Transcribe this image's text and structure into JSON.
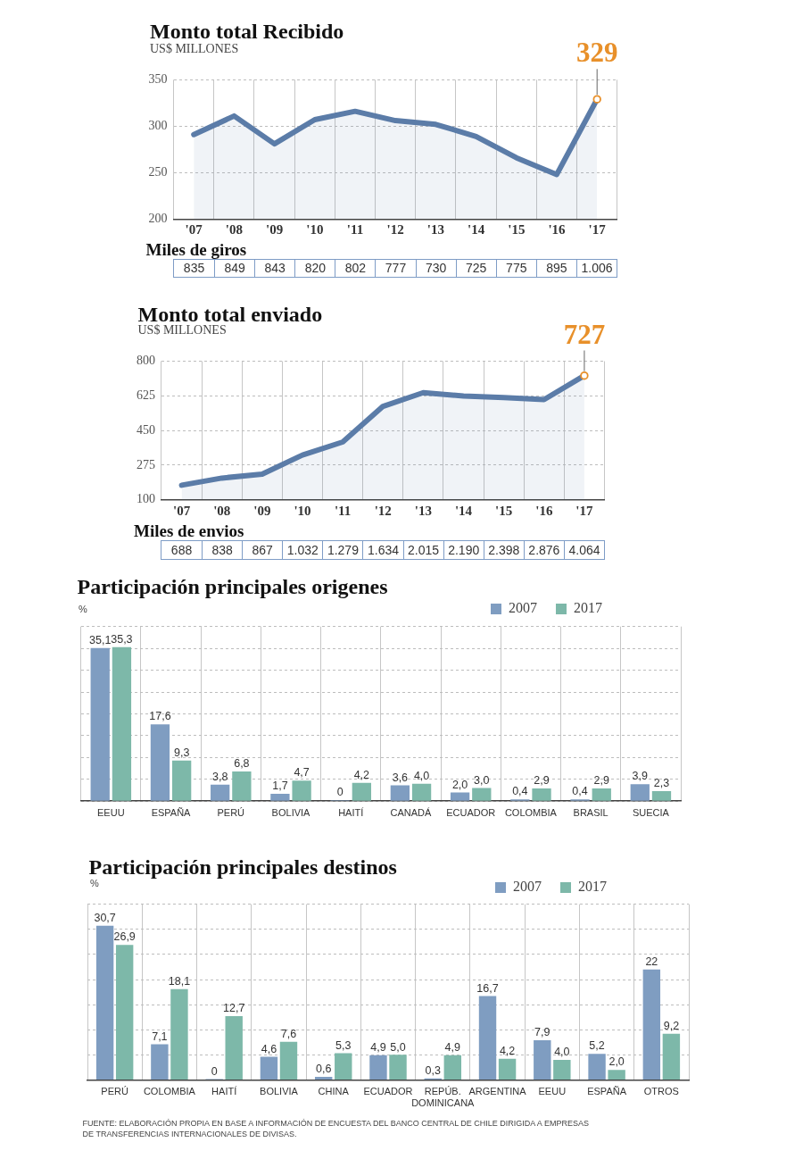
{
  "chart_data": [
    {
      "type": "area",
      "title": "Monto total Recibido",
      "ylabel": "US$ MILLONES",
      "categories": [
        "'07",
        "'08",
        "'09",
        "'10",
        "'11",
        "'12",
        "'13",
        "'14",
        "'15",
        "'16",
        "'17"
      ],
      "color": "#5b7ca8",
      "values": [
        291,
        311,
        281,
        307,
        316,
        306,
        302,
        289,
        266,
        248,
        329
      ],
      "ylim": [
        200,
        350
      ],
      "yticks": [
        200,
        250,
        300,
        350
      ],
      "grid": true,
      "annotations": [
        {
          "text": "329",
          "x": "'17",
          "y": 329
        }
      ]
    },
    {
      "type": "other",
      "title": "Miles de giros",
      "values": [
        835,
        849,
        843,
        820,
        802,
        777,
        730,
        725,
        775,
        895,
        1006
      ],
      "value_labels": [
        "835",
        "849",
        "843",
        "820",
        "802",
        "777",
        "730",
        "725",
        "775",
        "895",
        "1.006"
      ]
    },
    {
      "type": "area",
      "title": "Monto total enviado",
      "ylabel": "US$ MILLONES",
      "categories": [
        "'07",
        "'08",
        "'09",
        "'10",
        "'11",
        "'12",
        "'13",
        "'14",
        "'15",
        "'16",
        "'17"
      ],
      "color": "#5b7ca8",
      "values": [
        174,
        210,
        230,
        326,
        392,
        572,
        641,
        624,
        616,
        606,
        727
      ],
      "ylim": [
        100,
        800
      ],
      "yticks": [
        100,
        275,
        450,
        625,
        800
      ],
      "grid": true,
      "annotations": [
        {
          "text": "727",
          "x": "'17",
          "y": 727
        }
      ]
    },
    {
      "type": "other",
      "title": "Miles de envios",
      "values": [
        688,
        838,
        867,
        1032,
        1279,
        1634,
        2015,
        2190,
        2398,
        2876,
        4064
      ],
      "value_labels": [
        "688",
        "838",
        "867",
        "1.032",
        "1.279",
        "1.634",
        "2.015",
        "2.190",
        "2.398",
        "2.876",
        "4.064"
      ]
    },
    {
      "type": "bar",
      "title": "Participación principales origenes",
      "ylabel": "%",
      "categories": [
        "EEUU",
        "ESPAÑA",
        "PERÚ",
        "BOLIVIA",
        "HAITÍ",
        "CANADÁ",
        "ECUADOR",
        "COLOMBIA",
        "BRASIL",
        "SUECIA"
      ],
      "series": [
        {
          "name": "2007",
          "color": "#7f9dc1",
          "values": [
            35.1,
            17.6,
            3.8,
            1.7,
            0,
            3.6,
            2.0,
            0.4,
            0.4,
            3.9
          ],
          "value_labels": [
            "35,1",
            "17,6",
            "3,8",
            "1,7",
            "0",
            "3,6",
            "2,0",
            "0,4",
            "0,4",
            "3,9"
          ]
        },
        {
          "name": "2017",
          "color": "#7db8a9",
          "values": [
            35.3,
            9.3,
            6.8,
            4.7,
            4.2,
            4.0,
            3.0,
            2.9,
            2.9,
            2.3
          ],
          "value_labels": [
            "35,3",
            "9,3",
            "6,8",
            "4,7",
            "4,2",
            "4,0",
            "3,0",
            "2,9",
            "2,9",
            "2,3"
          ]
        }
      ],
      "ylim": [
        0,
        40
      ],
      "yticks": [
        {
          "value": 0,
          "label": null
        },
        {
          "value": 5,
          "label": null
        },
        {
          "value": 10,
          "label": null
        },
        {
          "value": 15,
          "label": null
        },
        {
          "value": 20,
          "label": null
        },
        {
          "value": 25,
          "label": null
        },
        {
          "value": 30,
          "label": null
        },
        {
          "value": 35,
          "label": null
        },
        {
          "value": 40,
          "label": null
        }
      ],
      "tick_labels": "x",
      "grid": true,
      "legend": "top right"
    },
    {
      "type": "bar",
      "title": "Participación principales destinos",
      "ylabel": "%",
      "categories": [
        "PERÚ",
        "COLOMBIA",
        "HAITÍ",
        "BOLIVIA",
        "CHINA",
        "ECUADOR",
        "REPÚB. DOMINICANA",
        "ARGENTINA",
        "EEUU",
        "ESPAÑA",
        "OTROS"
      ],
      "series": [
        {
          "name": "2007",
          "color": "#7f9dc1",
          "values": [
            30.7,
            7.1,
            0,
            4.6,
            0.6,
            4.9,
            0.3,
            16.7,
            7.9,
            5.2,
            22
          ],
          "value_labels": [
            "30,7",
            "7,1",
            "0",
            "4,6",
            "0,6",
            "4,9",
            "0,3",
            "16,7",
            "7,9",
            "5,2",
            "22"
          ]
        },
        {
          "name": "2017",
          "color": "#7db8a9",
          "values": [
            26.9,
            18.1,
            12.7,
            7.6,
            5.3,
            5.0,
            4.9,
            4.2,
            4.0,
            2.0,
            9.2
          ],
          "value_labels": [
            "26,9",
            "18,1",
            "12,7",
            "7,6",
            "5,3",
            "5,0",
            "4,9",
            "4,2",
            "4,0",
            "2,0",
            "9,2"
          ]
        }
      ],
      "ylim": [
        0,
        35
      ],
      "yticks": [
        {
          "value": 0,
          "label": null
        },
        {
          "value": 5,
          "label": null
        },
        {
          "value": 10,
          "label": null
        },
        {
          "value": 15,
          "label": null
        },
        {
          "value": 20,
          "label": null
        },
        {
          "value": 25,
          "label": null
        },
        {
          "value": 30,
          "label": null
        },
        {
          "value": 35,
          "label": null
        }
      ],
      "tick_labels": "x",
      "grid": true,
      "legend": "top right",
      "annotations": [
        "FUENTE: ELABORACIÓN PROPIA EN BASE A INFORMACIÓN DE ENCUESTA DEL BANCO CENTRAL DE CHILE DIRIGIDA A EMPRESAS DE TRANSFERENCIAS INTERNACIONALES DE DIVISAS."
      ]
    }
  ]
}
